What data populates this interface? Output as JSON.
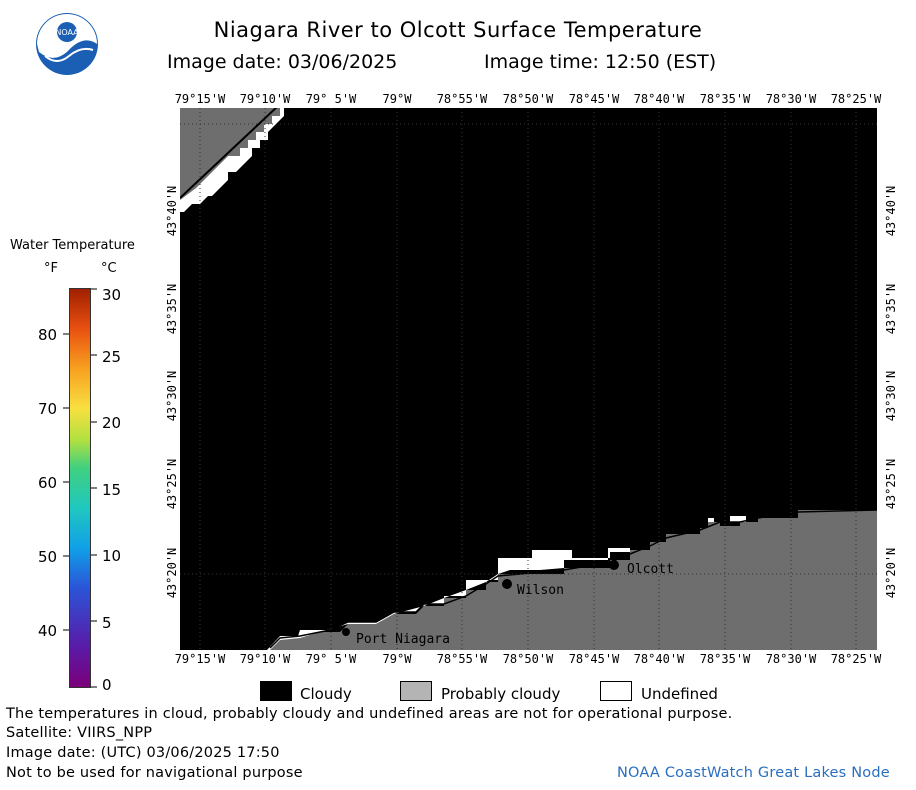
{
  "header": {
    "title": "Niagara River to Olcott Surface Temperature",
    "image_date": "Image date: 03/06/2025",
    "image_time": "Image time: 12:50 (EST)"
  },
  "logo": {
    "text": "NOAA"
  },
  "map": {
    "lon_labels": [
      "79°15'W",
      "79°10'W",
      "79° 5'W",
      "79°W",
      "78°55'W",
      "78°50'W",
      "78°45'W",
      "78°40'W",
      "78°35'W",
      "78°30'W",
      "78°25'W"
    ],
    "lat_labels": [
      "43°40'N",
      "43°35'N",
      "43°30'N",
      "43°25'N",
      "43°20'N"
    ],
    "places": [
      {
        "name": "Port Niagara"
      },
      {
        "name": "Wilson"
      },
      {
        "name": "Olcott"
      }
    ],
    "colors": {
      "cloudy": "#000000",
      "probably_cloudy": "#6e6e6e",
      "undefined": "#ffffff"
    }
  },
  "colorbar": {
    "title": "Water Temperature",
    "unit_f": "°F",
    "unit_c": "°C",
    "f_ticks": [
      "40",
      "50",
      "60",
      "70",
      "80"
    ],
    "c_ticks": [
      "0",
      "5",
      "10",
      "15",
      "20",
      "25",
      "30"
    ]
  },
  "legend": {
    "cloudy": "Cloudy",
    "probably_cloudy": "Probably cloudy",
    "undefined": "Undefined"
  },
  "footer": {
    "line1": "The temperatures in cloud, probably cloudy and undefined areas are not for operational purpose.",
    "line2": "Satellite: VIIRS_NPP",
    "line3": "Image date: (UTC) 03/06/2025  17:50",
    "line4": "Not to be used for navigational purpose",
    "credit": "NOAA CoastWatch Great Lakes Node"
  }
}
